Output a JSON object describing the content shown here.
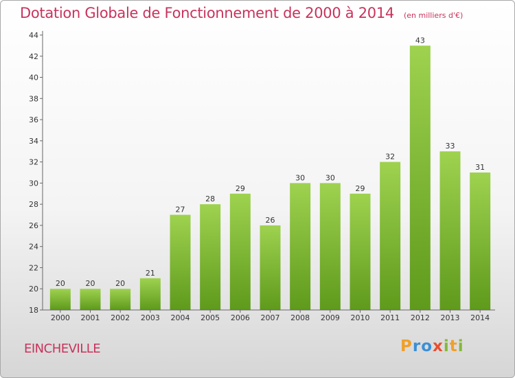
{
  "chart_data": {
    "type": "bar",
    "title": "Dotation Globale de Fonctionnement de 2000 à 2014",
    "subtitle": "(en milliers d'€)",
    "categories": [
      "2000",
      "2001",
      "2002",
      "2003",
      "2004",
      "2005",
      "2006",
      "2007",
      "2008",
      "2009",
      "2010",
      "2011",
      "2012",
      "2013",
      "2014"
    ],
    "values": [
      20,
      20,
      20,
      21,
      27,
      28,
      29,
      26,
      30,
      30,
      29,
      32,
      43,
      33,
      31
    ],
    "ylim": [
      18,
      44
    ],
    "yticks": [
      18,
      20,
      22,
      24,
      26,
      28,
      30,
      32,
      34,
      36,
      38,
      40,
      42,
      44
    ],
    "xlabel": "",
    "ylabel": "",
    "grid": false,
    "bar_color": "#7cb82f"
  },
  "commune": "EINCHEVILLE",
  "logo": {
    "letters": [
      "P",
      "r",
      "o",
      "x",
      "i",
      "t",
      "i"
    ],
    "colors": [
      "#f0a02a",
      "#3a8fd6",
      "#3a8fd6",
      "#e84e32",
      "#84b83a",
      "#f0a02a",
      "#84b83a"
    ]
  }
}
